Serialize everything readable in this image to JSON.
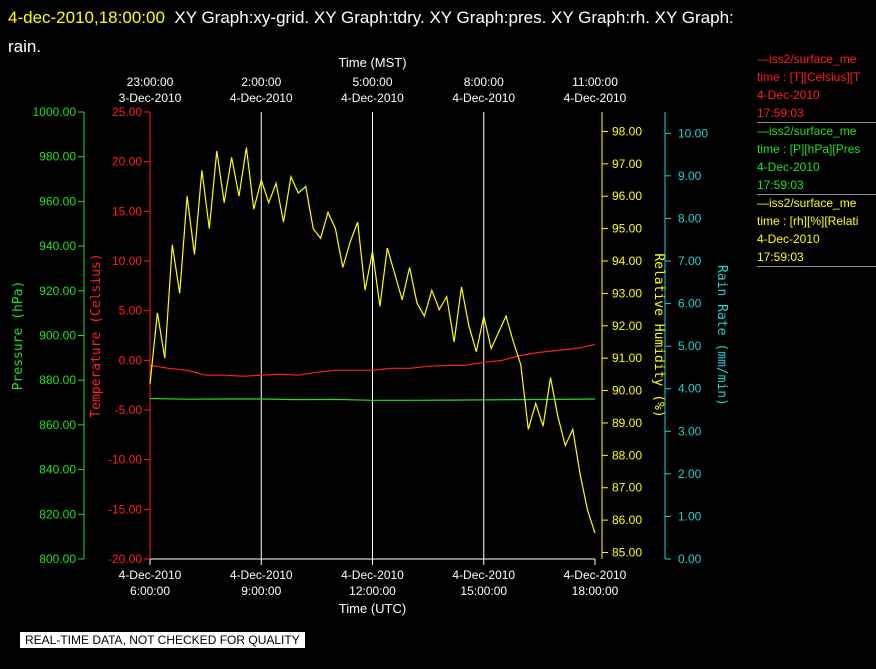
{
  "title": {
    "date": "4-dec-2010,18:00:00",
    "text_line1": "XY Graph:xy-grid.  XY Graph:tdry.  XY Graph:pres.  XY Graph:rh.  XY Graph:",
    "text_line2": "rain."
  },
  "legend": [
    {
      "line1": "—iss2/surface_me",
      "line2": "time : [T][Celsius][T",
      "line3": "4-Dec-2010",
      "line4": "17:59:03",
      "color": "#ff2020"
    },
    {
      "line1": "—iss2/surface_me",
      "line2": "time : [P][hPa][Pres",
      "line3": "4-Dec-2010",
      "line4": "17:59:03",
      "color": "#20e020"
    },
    {
      "line1": "—iss2/surface_me",
      "line2": "time : [rh][%][Relati",
      "line3": "4-Dec-2010",
      "line4": "17:59:03",
      "color": "#ffff00"
    }
  ],
  "notice": "REAL-TIME DATA, NOT CHECKED FOR QUALITY",
  "chart_data": {
    "type": "line",
    "top_axis": {
      "label": "Time (MST)",
      "ticks": [
        {
          "t": 6,
          "line1": "23:00:00",
          "line2": "3-Dec-2010"
        },
        {
          "t": 9,
          "line1": "2:00:00",
          "line2": "4-Dec-2010"
        },
        {
          "t": 12,
          "line1": "5:00:00",
          "line2": "4-Dec-2010"
        },
        {
          "t": 15,
          "line1": "8:00:00",
          "line2": "4-Dec-2010"
        },
        {
          "t": 18,
          "line1": "11:00:00",
          "line2": "4-Dec-2010"
        }
      ]
    },
    "bottom_axis": {
      "label": "Time (UTC)",
      "range": [
        6,
        18
      ],
      "ticks": [
        {
          "t": 6,
          "line1": "4-Dec-2010",
          "line2": "6:00:00"
        },
        {
          "t": 9,
          "line1": "4-Dec-2010",
          "line2": "9:00:00"
        },
        {
          "t": 12,
          "line1": "4-Dec-2010",
          "line2": "12:00:00"
        },
        {
          "t": 15,
          "line1": "4-Dec-2010",
          "line2": "15:00:00"
        },
        {
          "t": 18,
          "line1": "4-Dec-2010",
          "line2": "18:00:00"
        }
      ]
    },
    "axes": {
      "pressure": {
        "label": "Pressure (hPa)",
        "range": [
          800,
          1000
        ],
        "color": "#20e020",
        "ticks": [
          "800.00",
          "820.00",
          "840.00",
          "860.00",
          "880.00",
          "900.00",
          "920.00",
          "940.00",
          "960.00",
          "980.00",
          "1000.00"
        ]
      },
      "temperature": {
        "label": "Temperature (Celsius)",
        "range": [
          -20,
          25
        ],
        "color": "#ff2020",
        "ticks": [
          "-20.00",
          "-15.00",
          "-10.00",
          "-5.00",
          "0.00",
          "5.00",
          "10.00",
          "15.00",
          "20.00",
          "25.00"
        ]
      },
      "humidity": {
        "label": "Relative Humidity (%)",
        "range": [
          84.8,
          98.6
        ],
        "color": "#ffff00",
        "ticks": [
          "85.00",
          "86.00",
          "87.00",
          "88.00",
          "89.00",
          "90.00",
          "91.00",
          "92.00",
          "93.00",
          "94.00",
          "95.00",
          "96.00",
          "97.00",
          "98.00"
        ]
      },
      "rain": {
        "label": "Rain Rate (mm/min)",
        "range": [
          0,
          10.5
        ],
        "color": "#20d0d0",
        "ticks": [
          "0.00",
          "1.00",
          "2.00",
          "3.00",
          "4.00",
          "5.00",
          "6.00",
          "7.00",
          "8.00",
          "9.00",
          "10.00"
        ]
      }
    },
    "series": [
      {
        "name": "pressure",
        "axis": "pressure",
        "color": "#20e020",
        "x": [
          6,
          7,
          8,
          9,
          10,
          11,
          12,
          13,
          14,
          15,
          16,
          17,
          18
        ],
        "y": [
          871.8,
          871.5,
          871.6,
          871.6,
          871.3,
          871.4,
          871.0,
          871.0,
          871.1,
          871.2,
          871.3,
          871.4,
          871.6
        ]
      },
      {
        "name": "temperature",
        "axis": "temperature",
        "color": "#ff2020",
        "x": [
          6,
          6.5,
          7,
          7.5,
          8,
          8.5,
          9,
          9.5,
          10,
          10.5,
          11,
          11.5,
          12,
          12.5,
          13,
          13.5,
          14,
          14.5,
          15,
          15.5,
          16,
          16.5,
          17,
          17.5,
          18
        ],
        "y": [
          -0.5,
          -0.8,
          -1.0,
          -1.5,
          -1.5,
          -1.6,
          -1.5,
          -1.4,
          -1.5,
          -1.2,
          -1.0,
          -1.0,
          -1.0,
          -0.8,
          -0.8,
          -0.6,
          -0.5,
          -0.5,
          -0.2,
          0.0,
          0.5,
          0.8,
          1.0,
          1.2,
          1.6
        ]
      },
      {
        "name": "humidity",
        "axis": "humidity",
        "color": "#ffff00",
        "x": [
          6,
          6.2,
          6.4,
          6.6,
          6.8,
          7,
          7.2,
          7.4,
          7.6,
          7.8,
          8,
          8.2,
          8.4,
          8.6,
          8.8,
          9,
          9.2,
          9.4,
          9.6,
          9.8,
          10,
          10.2,
          10.4,
          10.6,
          10.8,
          11,
          11.2,
          11.4,
          11.6,
          11.8,
          12,
          12.2,
          12.4,
          12.6,
          12.8,
          13,
          13.2,
          13.4,
          13.6,
          13.8,
          14,
          14.2,
          14.4,
          14.6,
          14.8,
          15,
          15.2,
          15.4,
          15.6,
          15.8,
          16,
          16.2,
          16.4,
          16.6,
          16.8,
          17,
          17.2,
          17.4,
          17.6,
          17.8,
          18
        ],
        "y": [
          90.2,
          92.4,
          91.0,
          94.5,
          93.0,
          96.0,
          94.2,
          96.8,
          95.0,
          97.4,
          95.8,
          97.2,
          96.0,
          97.5,
          95.6,
          96.5,
          95.8,
          96.4,
          95.2,
          96.6,
          96.1,
          96.3,
          95.0,
          94.7,
          95.5,
          95.0,
          93.8,
          94.6,
          95.2,
          93.1,
          94.3,
          92.6,
          94.4,
          93.6,
          92.8,
          93.8,
          92.7,
          92.3,
          93.1,
          92.5,
          92.9,
          91.5,
          93.2,
          92.0,
          91.2,
          92.3,
          91.3,
          91.8,
          92.3,
          91.5,
          90.8,
          88.8,
          89.6,
          88.9,
          90.4,
          89.2,
          88.3,
          88.8,
          87.4,
          86.3,
          85.6
        ]
      }
    ]
  }
}
